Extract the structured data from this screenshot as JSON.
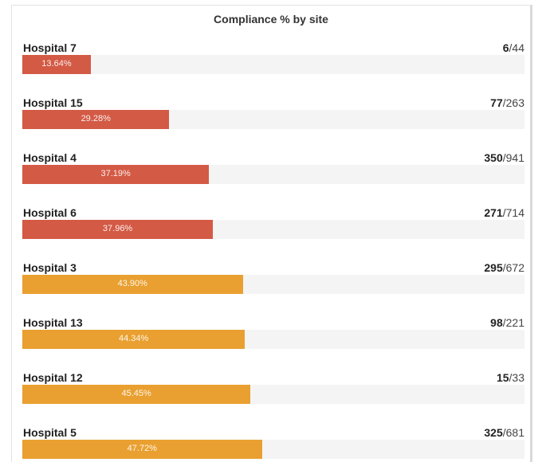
{
  "chart_data": {
    "type": "bar",
    "orientation": "horizontal",
    "title": "Compliance % by site",
    "categories": [
      "Hospital 7",
      "Hospital 15",
      "Hospital 4",
      "Hospital 6",
      "Hospital 3",
      "Hospital 13",
      "Hospital 12",
      "Hospital 5"
    ],
    "values": [
      13.64,
      29.28,
      37.19,
      37.96,
      43.9,
      44.34,
      45.45,
      47.72
    ],
    "value_labels": [
      "13.64%",
      "29.28%",
      "37.19%",
      "37.96%",
      "43.90%",
      "44.34%",
      "45.45%",
      "47.72%"
    ],
    "numerators": [
      6,
      77,
      350,
      271,
      295,
      98,
      15,
      325
    ],
    "denominators": [
      44,
      263,
      941,
      714,
      672,
      221,
      33,
      681
    ],
    "xlim": [
      0,
      100
    ],
    "colors": {
      "low": "#d35a45",
      "mid": "#e9a030"
    },
    "bar_colors": [
      "low",
      "low",
      "low",
      "low",
      "mid",
      "mid",
      "mid",
      "mid"
    ]
  }
}
